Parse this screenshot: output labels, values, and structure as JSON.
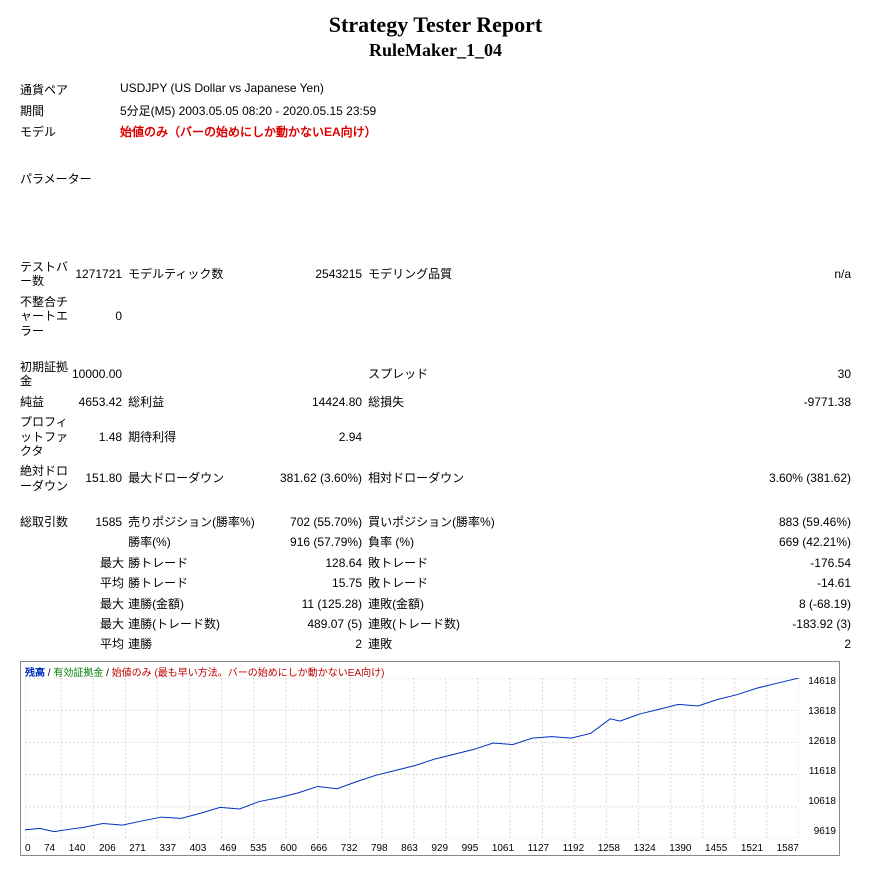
{
  "title": "Strategy Tester Report",
  "subtitle": "RuleMaker_1_04",
  "header": {
    "pair_label": "通貨ペア",
    "pair_value": "USDJPY (US Dollar vs Japanese Yen)",
    "period_label": "期間",
    "period_value": "5分足(M5) 2003.05.05 08:20 - 2020.05.15 23:59",
    "model_label": "モデル",
    "model_value": "始値のみ（バーの始めにしか動かないEA向け）"
  },
  "parameter_label": "パラメーター",
  "stats": {
    "test_bars_label": "テストバー数",
    "test_bars": "1271721",
    "model_ticks_label": "モデルティック数",
    "model_ticks": "2543215",
    "model_quality_label": "モデリング品質",
    "model_quality": "n/a",
    "mismatch_label": "不整合チャートエラー",
    "mismatch": "0",
    "initial_deposit_label": "初期証拠金",
    "initial_deposit": "10000.00",
    "spread_label": "スプレッド",
    "spread": "30",
    "net_profit_label": "純益",
    "net_profit": "4653.42",
    "gross_profit_label": "総利益",
    "gross_profit": "14424.80",
    "gross_loss_label": "総損失",
    "gross_loss": "-9771.38",
    "profit_factor_label": "プロフィットファクタ",
    "profit_factor": "1.48",
    "expected_label": "期待利得",
    "expected": "2.94",
    "abs_dd_label": "絶対ドローダウン",
    "abs_dd": "151.80",
    "max_dd_label": "最大ドローダウン",
    "max_dd": "381.62 (3.60%)",
    "rel_dd_label": "相対ドローダウン",
    "rel_dd": "3.60% (381.62)",
    "total_trades_label": "総取引数",
    "total_trades": "1585",
    "short_label": "売りポジション(勝率%)",
    "short": "702 (55.70%)",
    "long_label": "買いポジション(勝率%)",
    "long": "883 (59.46%)",
    "profit_pct_label": "勝率(%)",
    "profit_pct": "916 (57.79%)",
    "loss_pct_label": "負率 (%)",
    "loss_pct": "669 (42.21%)",
    "max_pre": "最大",
    "avg_pre": "平均",
    "win_trade_label": "勝トレード",
    "win_trade": "128.64",
    "loss_trade_label": "敗トレード",
    "loss_trade": "-176.54",
    "avg_win_label": "勝トレード",
    "avg_win": "15.75",
    "avg_loss_label": "敗トレード",
    "avg_loss": "-14.61",
    "cons_win_amt_label": "連勝(金額)",
    "cons_win_amt": "11 (125.28)",
    "cons_loss_amt_label": "連敗(金額)",
    "cons_loss_amt": "8 (-68.19)",
    "cons_win_cnt_label": "連勝(トレード数)",
    "cons_win_cnt": "489.07 (5)",
    "cons_loss_cnt_label": "連敗(トレード数)",
    "cons_loss_cnt": "-183.92 (3)",
    "avg_cons_win_label": "連勝",
    "avg_cons_win": "2",
    "avg_cons_loss_label": "連敗",
    "avg_cons_loss": "2"
  },
  "chart": {
    "legend_balance": "残高",
    "legend_equity": "有効証拠金",
    "legend_model": "始値のみ (最も早い方法。バーの始めにしか動かないEA向け)",
    "y_ticks": [
      "14618",
      "13618",
      "12618",
      "11618",
      "10618",
      "9619"
    ],
    "x_ticks": [
      "0",
      "74",
      "140",
      "206",
      "271",
      "337",
      "403",
      "469",
      "535",
      "600",
      "666",
      "732",
      "798",
      "863",
      "929",
      "995",
      "1061",
      "1127",
      "1192",
      "1258",
      "1324",
      "1390",
      "1455",
      "1521",
      "1587"
    ],
    "y_min": 9619,
    "y_max": 14618,
    "equity_points": [
      [
        0,
        9900
      ],
      [
        30,
        9950
      ],
      [
        60,
        9850
      ],
      [
        90,
        9920
      ],
      [
        120,
        9980
      ],
      [
        160,
        10100
      ],
      [
        200,
        10050
      ],
      [
        240,
        10180
      ],
      [
        280,
        10300
      ],
      [
        320,
        10260
      ],
      [
        360,
        10420
      ],
      [
        400,
        10600
      ],
      [
        440,
        10550
      ],
      [
        480,
        10780
      ],
      [
        520,
        10900
      ],
      [
        560,
        11050
      ],
      [
        600,
        11250
      ],
      [
        640,
        11180
      ],
      [
        680,
        11400
      ],
      [
        720,
        11600
      ],
      [
        760,
        11750
      ],
      [
        800,
        11900
      ],
      [
        840,
        12100
      ],
      [
        880,
        12250
      ],
      [
        920,
        12400
      ],
      [
        960,
        12600
      ],
      [
        1000,
        12550
      ],
      [
        1040,
        12750
      ],
      [
        1080,
        12800
      ],
      [
        1120,
        12750
      ],
      [
        1160,
        12900
      ],
      [
        1200,
        13350
      ],
      [
        1220,
        13280
      ],
      [
        1260,
        13500
      ],
      [
        1300,
        13650
      ],
      [
        1340,
        13800
      ],
      [
        1380,
        13750
      ],
      [
        1420,
        13950
      ],
      [
        1460,
        14100
      ],
      [
        1500,
        14300
      ],
      [
        1540,
        14450
      ],
      [
        1587,
        14618
      ]
    ],
    "line_color": "#0030c0",
    "grid_color": "#d8d8d8",
    "bg_color": "#ffffff"
  }
}
